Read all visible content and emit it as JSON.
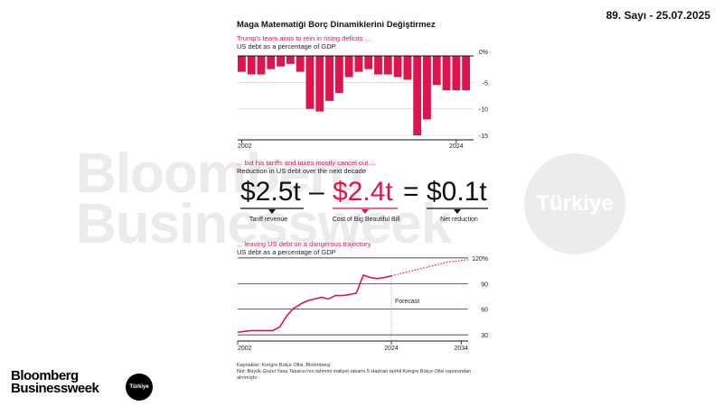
{
  "issue_label": "89. Sayı - 25.07.2025",
  "title": "Maga Matematiği Borç Dinamiklerini Değiştirmez",
  "watermark": {
    "line1": "Bloomberg",
    "line2": "Businessweek",
    "badge": "Türkiye"
  },
  "logo": {
    "line1": "Bloomberg",
    "line2": "Businessweek",
    "badge": "Türkiye"
  },
  "colors": {
    "accent": "#e0144c",
    "text": "#111111",
    "watermark": "#ebebeb"
  },
  "chart_data": [
    {
      "type": "bar",
      "subtitle_red": "Trump's team aims to rein in rising deficits ...",
      "subtitle": "US debt as a percentage of GDP",
      "x": [
        2002,
        2003,
        2004,
        2005,
        2006,
        2007,
        2008,
        2009,
        2010,
        2011,
        2012,
        2013,
        2014,
        2015,
        2016,
        2017,
        2018,
        2019,
        2020,
        2021,
        2022,
        2023,
        2024,
        2025
      ],
      "values": [
        -3.0,
        -3.5,
        -3.5,
        -2.5,
        -2.0,
        -1.5,
        -3.0,
        -10.0,
        -10.5,
        -8.5,
        -7.0,
        -4.0,
        -3.0,
        -2.5,
        -3.5,
        -3.5,
        -4.0,
        -4.5,
        -15.0,
        -12.0,
        -5.5,
        -6.5,
        -6.5,
        -6.5
      ],
      "x_tick_labels": [
        "2002",
        "2024"
      ],
      "y_tick_labels": [
        "0%",
        "-5",
        "-10",
        "-15"
      ],
      "y_ticks": [
        0,
        -5,
        -10,
        -15
      ],
      "ylim": [
        -15,
        0
      ],
      "grid": true
    },
    {
      "type": "table",
      "subtitle_red": "... but his tariffs and taxes mostly cancel out ...",
      "subtitle": "Reduction in US debt over the next decade",
      "items": [
        {
          "value": "$2.5t",
          "label": "Tariff revenue",
          "color": "#111111"
        },
        {
          "value": "$2.4t",
          "label": "Cost of Big Beautiful Bill",
          "color": "#e0144c"
        },
        {
          "value": "$0.1t",
          "label": "Net reduction",
          "color": "#111111"
        }
      ],
      "operators": [
        "–",
        "="
      ]
    },
    {
      "type": "line",
      "subtitle_red": "... leaving US debt on a dangerous trajectory",
      "subtitle": "US debt as a percentage of GDP",
      "series": [
        {
          "name": "",
          "x": [
            2002,
            2003,
            2004,
            2005,
            2006,
            2007,
            2008,
            2009,
            2010,
            2011,
            2012,
            2013,
            2014,
            2015,
            2016,
            2017,
            2018,
            2019,
            2020,
            2021,
            2022,
            2023,
            2024
          ],
          "values": [
            33,
            34,
            35,
            35,
            35,
            35,
            39,
            52,
            61,
            66,
            70,
            72,
            74,
            72,
            76,
            76,
            77,
            79,
            100,
            97,
            96,
            97,
            99
          ]
        },
        {
          "name": "Forecast",
          "x": [
            2024,
            2025,
            2026,
            2027,
            2028,
            2029,
            2030,
            2031,
            2032,
            2033,
            2034,
            2035
          ],
          "values": [
            99,
            101,
            103,
            105,
            107,
            109,
            111,
            113,
            115,
            116,
            117,
            118
          ],
          "dashed": true
        }
      ],
      "annotation": "Forecast",
      "annotation_x": 2024,
      "x_tick_labels": [
        "2002",
        "2024",
        "2034"
      ],
      "y_tick_labels": [
        "120%",
        "90",
        "60",
        "30"
      ],
      "y_ticks": [
        120,
        90,
        60,
        30
      ],
      "ylim": [
        28,
        122
      ],
      "xlim": [
        2002,
        2035
      ],
      "grid": true
    }
  ],
  "footnote": {
    "sources": "Kaynaklar: Kongre Bütçe Ofisi, Bloomberg",
    "note_line1": "Not: Büyük Güzel Yasa Tasarısı'nın tahmini maliyet rakamı 5 Haziran tarihli Kongre Bütçe Ofisi raporundan",
    "note_line2": "alınmıştır"
  }
}
